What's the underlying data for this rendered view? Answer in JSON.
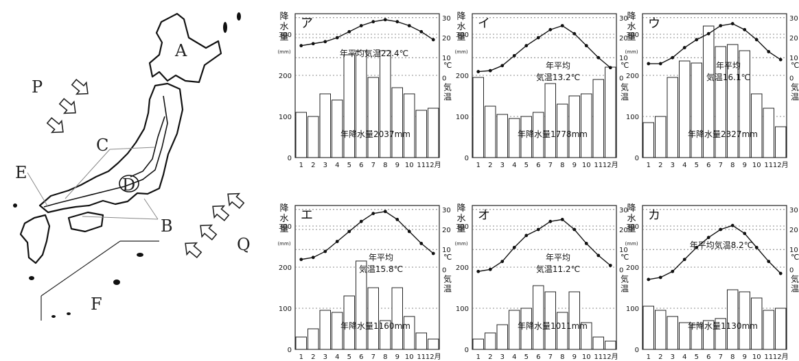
{
  "map": {
    "labels": {
      "A": "A",
      "B": "B",
      "C": "C",
      "D": "D",
      "E": "E",
      "F": "F",
      "P": "P",
      "Q": "Q"
    }
  },
  "chart_labels": {
    "precip_axis": "降水量",
    "precip_unit": "(mm)",
    "temp_unit": "℃",
    "temp_axis": "気温",
    "months": [
      "1",
      "2",
      "3",
      "4",
      "5",
      "6",
      "7",
      "8",
      "9",
      "10",
      "11",
      "12月"
    ],
    "precip_ticks": [
      "0",
      "100",
      "200",
      "300"
    ],
    "temp_ticks": [
      "0",
      "10",
      "20",
      "30"
    ]
  },
  "colors": {
    "bar_fill": "#ffffff",
    "bar_stroke": "#222222",
    "line": "#111111",
    "grid": "#666666"
  },
  "chart_data": [
    {
      "type": "bar+line",
      "title": "ア",
      "annual_temp": "年平均気温22.4℃",
      "annual_precip": "年降水量2037mm",
      "precip": [
        110,
        100,
        155,
        140,
        250,
        260,
        195,
        260,
        170,
        155,
        115,
        120
      ],
      "temp": [
        16,
        17,
        18,
        20,
        23,
        26,
        28,
        29,
        28,
        26,
        23,
        19
      ],
      "ylim_precip": [
        0,
        300
      ],
      "ylim_temp": [
        0,
        30
      ]
    },
    {
      "type": "bar+line",
      "title": "イ",
      "annual_temp": "年平均\n気温13.2℃",
      "annual_precip": "年降水量1778mm",
      "precip": [
        195,
        125,
        105,
        95,
        100,
        110,
        180,
        130,
        150,
        155,
        190,
        220
      ],
      "temp": [
        3,
        3.5,
        6,
        11,
        16,
        20,
        24,
        26,
        22,
        16,
        10,
        5
      ],
      "ylim_precip": [
        0,
        300
      ],
      "ylim_temp": [
        0,
        30
      ]
    },
    {
      "type": "bar+line",
      "title": "ウ",
      "annual_temp": "年平均\n気温16.1℃",
      "annual_precip": "年降水量2327mm",
      "precip": [
        85,
        100,
        195,
        235,
        230,
        320,
        270,
        275,
        260,
        155,
        120,
        75
      ],
      "temp": [
        7,
        7,
        10,
        15,
        19,
        22,
        26,
        27,
        24,
        19,
        13,
        9
      ],
      "ylim_precip": [
        0,
        300
      ],
      "ylim_temp": [
        0,
        30
      ]
    },
    {
      "type": "bar+line",
      "title": "エ",
      "annual_temp": "年平均\n気温15.8℃",
      "annual_precip": "年降水量1160mm",
      "precip": [
        30,
        50,
        95,
        90,
        130,
        215,
        150,
        70,
        150,
        80,
        40,
        25
      ],
      "temp": [
        5,
        6,
        9,
        14,
        19,
        24,
        28,
        29,
        25,
        19,
        13,
        8
      ],
      "ylim_precip": [
        0,
        300
      ],
      "ylim_temp": [
        0,
        30
      ]
    },
    {
      "type": "bar+line",
      "title": "オ",
      "annual_temp": "年平均\n気温11.2℃",
      "annual_precip": "年降水量1011mm",
      "precip": [
        25,
        40,
        60,
        95,
        100,
        155,
        140,
        90,
        140,
        65,
        30,
        20
      ],
      "temp": [
        -1,
        0,
        4,
        11,
        17,
        20,
        24,
        25,
        20,
        13,
        7,
        2
      ],
      "ylim_precip": [
        0,
        300
      ],
      "ylim_temp": [
        0,
        30
      ]
    },
    {
      "type": "bar+line",
      "title": "カ",
      "annual_temp": "年平均気温8.2℃",
      "annual_precip": "年降水量1130mm",
      "precip": [
        105,
        95,
        80,
        65,
        60,
        70,
        75,
        145,
        140,
        125,
        95,
        100
      ],
      "temp": [
        -5,
        -4,
        -1,
        5,
        11,
        16,
        20,
        22,
        18,
        11,
        4,
        -2
      ],
      "ylim_precip": [
        0,
        300
      ],
      "ylim_temp": [
        0,
        30
      ]
    }
  ]
}
